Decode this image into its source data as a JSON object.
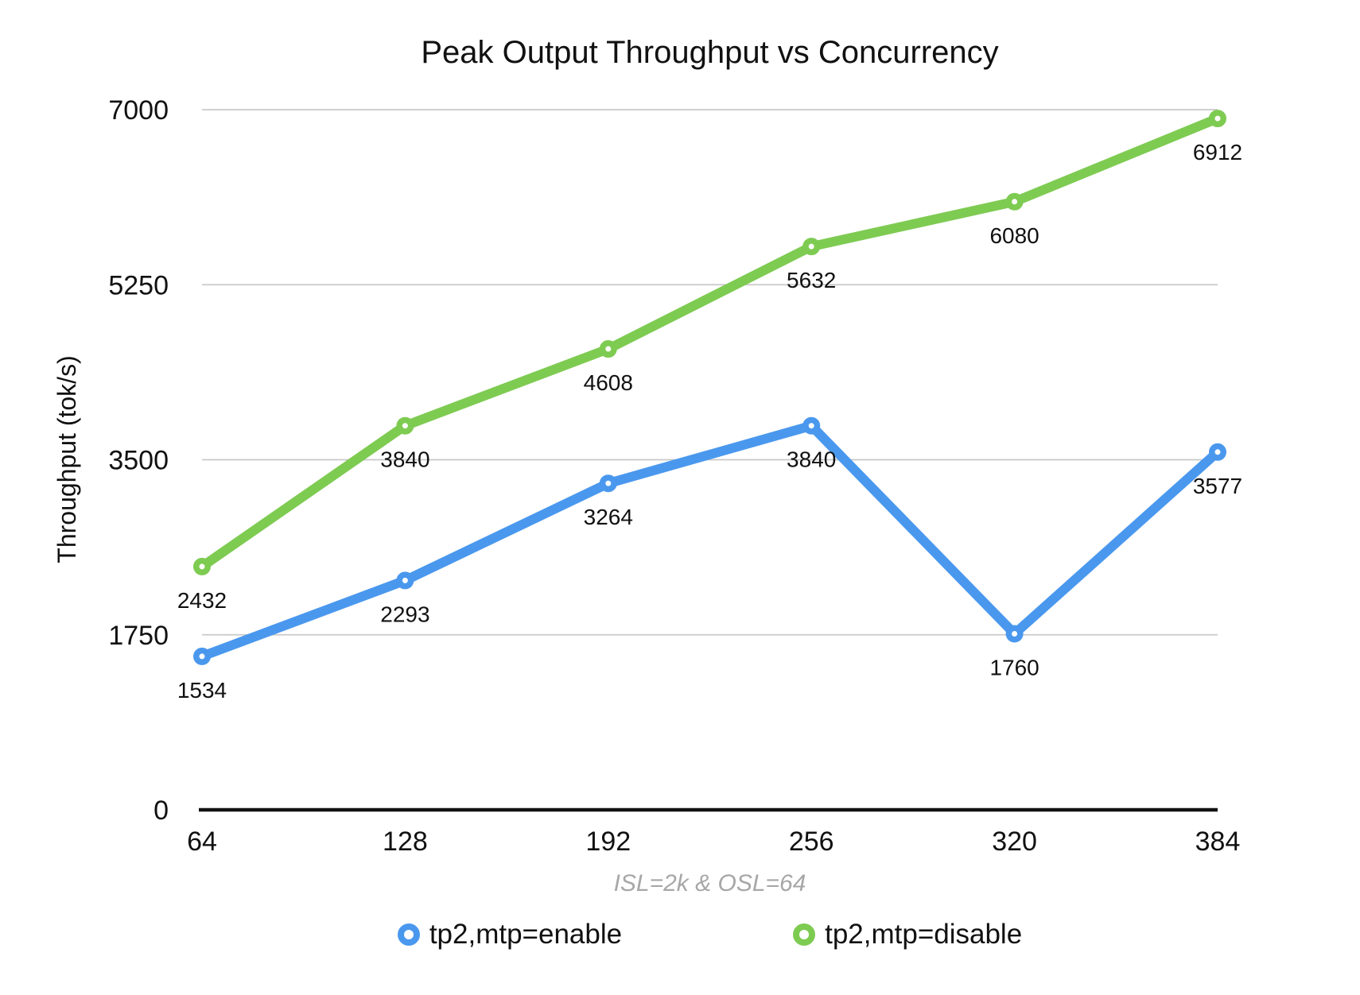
{
  "chart_data": {
    "type": "line",
    "title": "Peak Output Throughput vs Concurrency",
    "ylabel": "Throughput (tok/s)",
    "caption": "ISL=2k & OSL=64",
    "categories": [
      64,
      128,
      192,
      256,
      320,
      384
    ],
    "y_ticks": [
      0,
      1750,
      3500,
      5250,
      7000
    ],
    "ylim": [
      0,
      7000
    ],
    "grid": "horizontal",
    "legend_position": "bottom",
    "series": [
      {
        "name": "tp2,mtp=enable",
        "color": "#4a98ee",
        "values": [
          1534,
          2293,
          3264,
          3840,
          1760,
          3577
        ]
      },
      {
        "name": "tp2,mtp=disable",
        "color": "#7ecb52",
        "values": [
          2432,
          3840,
          4608,
          5632,
          6080,
          6912
        ]
      }
    ],
    "colors": {
      "gridline": "#c9c9c9",
      "axis": "#111111",
      "tick_text": "#111111",
      "data_label_text": "#111111",
      "caption_text": "#a7a7a7"
    }
  }
}
